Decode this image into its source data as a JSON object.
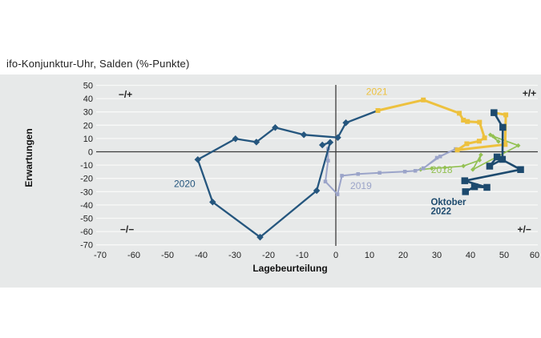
{
  "title": "ifo-Konjunktur-Uhr, Salden (%-Punkte)",
  "colors": {
    "background": "#ffffff",
    "panel": "#e7e9e9",
    "grid": "#f8f9f8",
    "axis": "#3c3c3c",
    "tick_text": "#222222",
    "quadrant_text": "#222222"
  },
  "chart_data": {
    "type": "line",
    "title": "ifo-Konjunktur-Uhr, Salden (%-Punkte)",
    "xlabel": "Lagebeurteilung",
    "ylabel": "Erwartungen",
    "xlim": [
      -70,
      60
    ],
    "ylim": [
      -70,
      50
    ],
    "xticks": [
      -70,
      -60,
      -50,
      -40,
      -30,
      -20,
      -10,
      0,
      10,
      20,
      30,
      40,
      50,
      60
    ],
    "yticks": [
      50,
      40,
      30,
      20,
      10,
      0,
      -10,
      -20,
      -30,
      -40,
      -50,
      -60,
      -70
    ],
    "grid": "horizontal-only",
    "legend_position": "inline-year-labels",
    "quadrant_labels": [
      {
        "text": "−/+",
        "x": -62.5,
        "y": 43
      },
      {
        "text": "+/+",
        "x": 57.5,
        "y": 44
      },
      {
        "text": "−/−",
        "x": -62,
        "y": -58.5
      },
      {
        "text": "+/−",
        "x": 56,
        "y": -58.5
      }
    ],
    "series": [
      {
        "name": "2018",
        "label": "2018",
        "color": "#93c152",
        "marker": "diamond",
        "marker_size": 4,
        "line_width": 1.7,
        "label_x": 28.3,
        "label_y": -16,
        "label_bold": false,
        "points": [
          [
            45.9,
            12.8
          ],
          [
            48.3,
            7.7
          ],
          [
            46.7,
            11.7
          ],
          [
            54.2,
            4.7
          ],
          [
            40.7,
            -13.4
          ],
          [
            43.1,
            -2.3
          ],
          [
            42.7,
            -6.3
          ],
          [
            37.9,
            -10.7
          ],
          [
            32.4,
            -11.9
          ],
          [
            28.5,
            -12.5
          ],
          [
            25.2,
            -13.4
          ]
        ],
        "lead_out": null
      },
      {
        "name": "2019",
        "label": "2019",
        "color": "#9ba4c9",
        "marker": "square",
        "marker_size": 4.5,
        "line_width": 2,
        "label_x": 4.3,
        "label_y": -28,
        "label_bold": false,
        "points": [
          [
            26,
            -12.3
          ],
          [
            31,
            -3.5
          ],
          [
            35.6,
            2.1
          ],
          [
            30,
            -4.5
          ],
          [
            26,
            -12.5
          ],
          [
            23.6,
            -14.3
          ],
          [
            20.5,
            -14.9
          ],
          [
            13,
            -15.8
          ],
          [
            6.6,
            -16.7
          ],
          [
            1.8,
            -18
          ],
          [
            0.5,
            -32
          ],
          [
            -3.1,
            -22.4
          ],
          [
            -2.3,
            -6.7
          ],
          [
            -2.3,
            2.3
          ]
        ],
        "lead_out": null
      },
      {
        "name": "2020",
        "label": "2020",
        "color": "#25567e",
        "marker": "diamond",
        "marker_size": 6,
        "line_width": 2.3,
        "label_x": -48.1,
        "label_y": -26.5,
        "label_bold": false,
        "points": [
          [
            -4,
            5.1
          ],
          [
            -1.7,
            7.1
          ],
          [
            -5.7,
            -29.2
          ],
          [
            -22.5,
            -64.2
          ],
          [
            -36.6,
            -37.8
          ],
          [
            -41,
            -5.9
          ],
          [
            -29.8,
            9.8
          ],
          [
            -23.6,
            7.3
          ],
          [
            -18,
            18.2
          ],
          [
            -9.5,
            12.8
          ],
          [
            0.6,
            10.7
          ],
          [
            3,
            21.8
          ]
        ],
        "lead_out": [
          12.5,
          31
        ]
      },
      {
        "name": "2021",
        "label": "2021",
        "color": "#edc13e",
        "marker": "square",
        "marker_size": 6,
        "line_width": 3,
        "label_x": 9,
        "label_y": 42.8,
        "label_bold": false,
        "points": [
          [
            12.5,
            31
          ],
          [
            26,
            39
          ],
          [
            36.7,
            29
          ],
          [
            37.9,
            23.8
          ],
          [
            39.1,
            22.8
          ],
          [
            42.7,
            22.2
          ],
          [
            44.2,
            10.4
          ],
          [
            42.6,
            8
          ],
          [
            38.9,
            6
          ],
          [
            36.1,
            1.4
          ],
          [
            50.3,
            5.5
          ],
          [
            50.5,
            27.8
          ]
        ],
        "lead_out": [
          47,
          29.4
        ]
      },
      {
        "name": "2022",
        "label": "Oktober 2022",
        "color": "#1d4a6e",
        "marker": "square",
        "marker_size": 8.5,
        "line_width": 2.6,
        "label_lines": [
          "Oktober",
          "2022"
        ],
        "label_x": 28.2,
        "label_y": -40.1,
        "label_line2_y": -47,
        "label_bold": true,
        "points": [
          [
            47,
            29.4
          ],
          [
            49.6,
            18.4
          ],
          [
            49.5,
            -5.7
          ],
          [
            45.7,
            -10.8
          ],
          [
            47.9,
            -3.9
          ],
          [
            54.9,
            -13.4
          ],
          [
            38.3,
            -21.8
          ],
          [
            44.9,
            -26.8
          ],
          [
            41.2,
            -26.3
          ],
          [
            38.5,
            -30
          ]
        ],
        "lead_out": null
      }
    ]
  }
}
